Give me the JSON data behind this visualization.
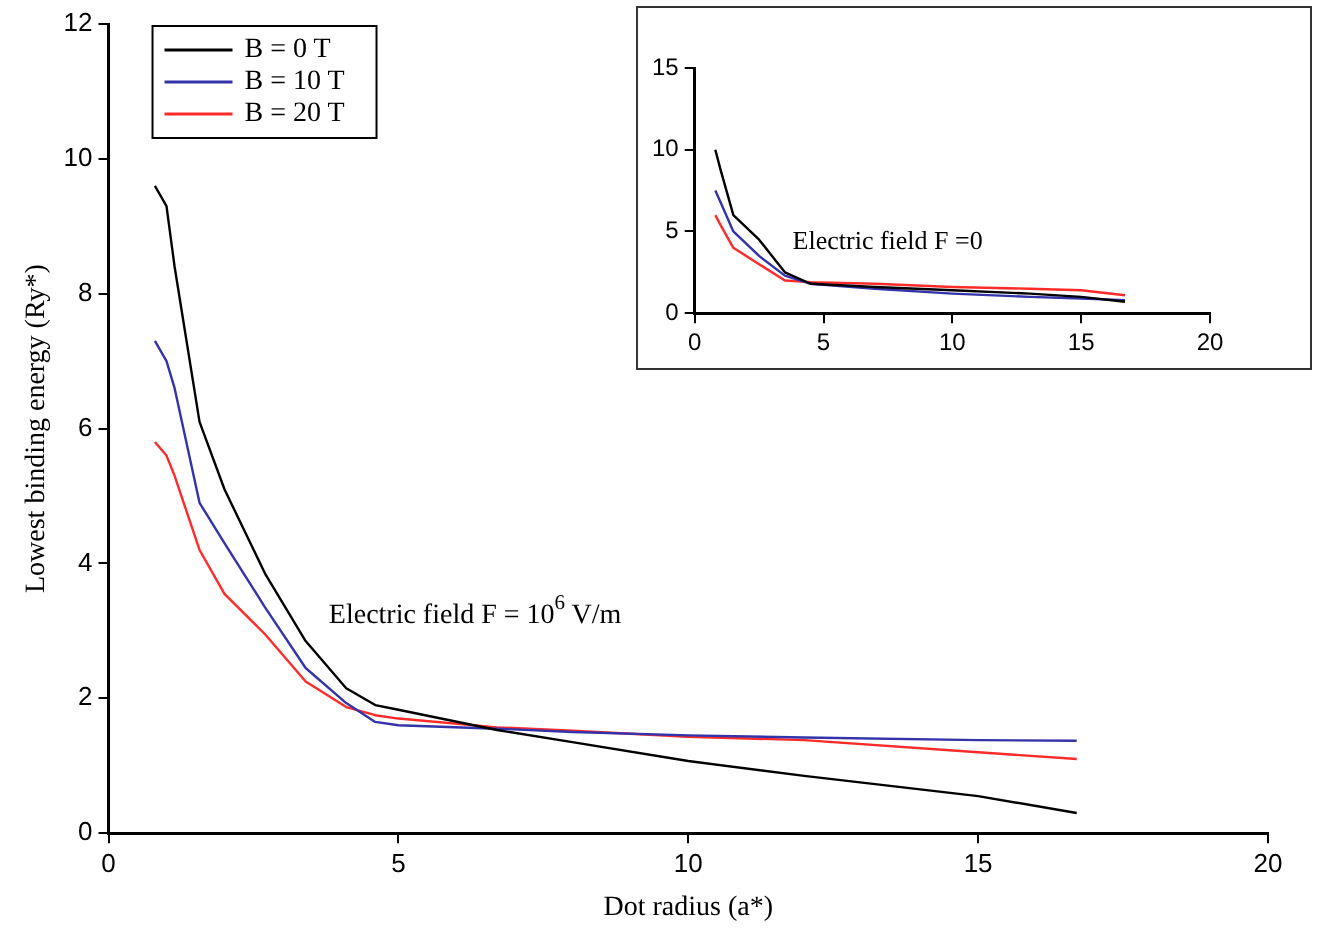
{
  "chart_data": [
    {
      "type": "line",
      "xlabel": "Dot radius (a*)",
      "ylabel": "Lowest binding energy (Ry*)",
      "xlim": [
        0,
        20
      ],
      "xticks": [
        0,
        5,
        10,
        15,
        20
      ],
      "ylim": [
        0,
        12
      ],
      "yticks": [
        0,
        2,
        4,
        6,
        8,
        10,
        12
      ],
      "grid": false,
      "legend": "top left",
      "marker": "none",
      "line_style": "solid",
      "annotations": [
        "Electric field F = 10$^{6}$ V/m"
      ],
      "x": [
        0.8,
        1.0,
        1.14,
        1.57,
        2.0,
        2.7,
        3.4,
        4.1,
        4.6,
        5.0,
        6.7,
        8.0,
        10.0,
        12.0,
        15.0,
        16.7
      ],
      "series": [
        {
          "name": "B = 0 T",
          "color": "#000000",
          "values": [
            9.6,
            9.3,
            8.4,
            6.1,
            5.1,
            3.85,
            2.85,
            2.15,
            1.9,
            1.83,
            1.53,
            1.35,
            1.07,
            0.85,
            0.55,
            0.3
          ]
        },
        {
          "name": "B = 10 T",
          "color": "#3333aa",
          "values": [
            7.3,
            7.0,
            6.6,
            4.9,
            4.3,
            3.35,
            2.45,
            1.93,
            1.65,
            1.6,
            1.55,
            1.5,
            1.45,
            1.42,
            1.38,
            1.37
          ]
        },
        {
          "name": "B = 20 T",
          "color": "#ff2a2a",
          "values": [
            5.8,
            5.6,
            5.3,
            4.2,
            3.55,
            2.95,
            2.25,
            1.87,
            1.75,
            1.7,
            1.57,
            1.52,
            1.43,
            1.38,
            1.2,
            1.1
          ]
        }
      ]
    },
    {
      "type": "line",
      "xlim": [
        0,
        20
      ],
      "xticks": [
        0,
        5,
        10,
        15,
        20
      ],
      "ylim": [
        0,
        15
      ],
      "yticks": [
        0,
        5,
        10,
        15
      ],
      "grid": false,
      "marker": "none",
      "line_style": "solid",
      "annotations": [
        "Electric field F =0"
      ],
      "x": [
        0.8,
        1.0,
        1.5,
        2.5,
        3.5,
        4.5,
        7.0,
        10.0,
        13.0,
        15.0,
        16.7
      ],
      "series": [
        {
          "color": "#000000",
          "values": [
            10.0,
            8.8,
            6.0,
            4.5,
            2.5,
            1.8,
            1.6,
            1.4,
            1.2,
            1.0,
            0.7
          ]
        },
        {
          "color": "#3333aa",
          "values": [
            7.5,
            6.8,
            5.0,
            3.5,
            2.3,
            1.8,
            1.5,
            1.2,
            1.0,
            0.9,
            0.8
          ]
        },
        {
          "color": "#ff2a2a",
          "values": [
            6.0,
            5.4,
            4.0,
            3.0,
            2.0,
            1.9,
            1.8,
            1.6,
            1.5,
            1.4,
            1.1
          ]
        }
      ]
    }
  ]
}
